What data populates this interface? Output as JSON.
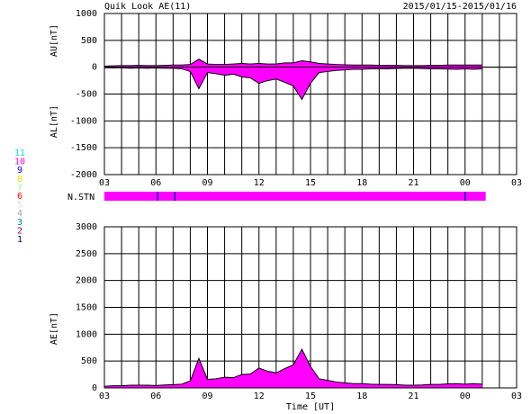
{
  "chart_data": [
    {
      "type": "area",
      "title": "Quik Look AE(11)",
      "subtitle": "2015/01/15-2015/01/16",
      "ylabels": [
        "AU[nT]",
        "AL[nT]"
      ],
      "x": [
        0,
        0.5,
        1,
        1.5,
        2,
        2.5,
        3,
        3.5,
        4,
        4.5,
        5,
        5.5,
        6,
        6.5,
        7,
        7.5,
        8,
        8.5,
        9,
        9.5,
        10,
        10.5,
        11,
        11.5,
        12,
        12.5,
        13,
        13.5,
        14,
        14.5,
        15,
        15.5,
        16,
        16.5,
        17,
        17.5,
        18,
        18.5,
        19,
        19.5,
        20,
        20.5,
        21,
        21.5,
        22
      ],
      "series": [
        {
          "color": "#ff00ff",
          "values": [
            20,
            25,
            30,
            30,
            35,
            30,
            30,
            35,
            40,
            40,
            50,
            150,
            60,
            50,
            50,
            60,
            70,
            60,
            70,
            60,
            60,
            80,
            80,
            120,
            100,
            70,
            60,
            50,
            45,
            40,
            40,
            40,
            35,
            35,
            35,
            30,
            30,
            30,
            35,
            35,
            40,
            40,
            40,
            40,
            40
          ]
        },
        {
          "color": "#ff00ff",
          "values": [
            -10,
            -15,
            -10,
            -20,
            -15,
            -20,
            -15,
            -20,
            -20,
            -30,
            -80,
            -400,
            -100,
            -120,
            -150,
            -130,
            -180,
            -200,
            -300,
            -250,
            -220,
            -280,
            -350,
            -600,
            -300,
            -100,
            -80,
            -60,
            -50,
            -40,
            -40,
            -30,
            -30,
            -30,
            -25,
            -20,
            -20,
            -25,
            -30,
            -30,
            -35,
            -40,
            -30,
            -40,
            -30
          ]
        }
      ],
      "xlim": [
        0,
        24
      ],
      "xticks": [
        {
          "value": 0,
          "label": "03"
        },
        {
          "value": 3,
          "label": "06"
        },
        {
          "value": 6,
          "label": "09"
        },
        {
          "value": 9,
          "label": "12"
        },
        {
          "value": 12,
          "label": "15"
        },
        {
          "value": 15,
          "label": "18"
        },
        {
          "value": 18,
          "label": "21"
        },
        {
          "value": 21,
          "label": "00"
        },
        {
          "value": 24,
          "label": "03"
        }
      ],
      "ylim": [
        -2000,
        1000
      ],
      "yticks": [
        -2000,
        -1500,
        -1000,
        -500,
        0,
        500,
        1000
      ],
      "grid": true
    },
    {
      "type": "area",
      "ylabels": [
        "AE[nT]"
      ],
      "xlabel": "Time [UT]",
      "x": [
        0,
        0.5,
        1,
        1.5,
        2,
        2.5,
        3,
        3.5,
        4,
        4.5,
        5,
        5.5,
        6,
        6.5,
        7,
        7.5,
        8,
        8.5,
        9,
        9.5,
        10,
        10.5,
        11,
        11.5,
        12,
        12.5,
        13,
        13.5,
        14,
        14.5,
        15,
        15.5,
        16,
        16.5,
        17,
        17.5,
        18,
        18.5,
        19,
        19.5,
        20,
        20.5,
        21,
        21.5,
        22
      ],
      "series": [
        {
          "color": "#ff00ff",
          "values": [
            30,
            40,
            40,
            50,
            50,
            50,
            45,
            55,
            60,
            70,
            130,
            550,
            160,
            170,
            200,
            190,
            250,
            260,
            370,
            310,
            280,
            360,
            430,
            720,
            400,
            170,
            140,
            110,
            95,
            80,
            80,
            70,
            65,
            65,
            60,
            50,
            50,
            55,
            65,
            65,
            75,
            80,
            70,
            80,
            70
          ]
        }
      ],
      "xlim": [
        0,
        24
      ],
      "xticks": [
        {
          "value": 0,
          "label": "03"
        },
        {
          "value": 3,
          "label": "06"
        },
        {
          "value": 6,
          "label": "09"
        },
        {
          "value": 9,
          "label": "12"
        },
        {
          "value": 12,
          "label": "15"
        },
        {
          "value": 15,
          "label": "18"
        },
        {
          "value": 18,
          "label": "21"
        },
        {
          "value": 21,
          "label": "00"
        },
        {
          "value": 24,
          "label": "03"
        }
      ],
      "ylim": [
        0,
        3000
      ],
      "yticks": [
        0,
        500,
        1000,
        1500,
        2000,
        2500,
        3000
      ],
      "grid": true
    }
  ],
  "station_bar": {
    "label": "N.STN",
    "color": "#ff00ff",
    "end": 22.2,
    "markers": [
      3.1,
      4.1,
      21
    ],
    "marker_color": "#0000cc"
  },
  "station_legend": [
    {
      "label": "11",
      "color": "#00e0e0"
    },
    {
      "label": "10",
      "color": "#ff00ff"
    },
    {
      "label": "9",
      "color": "#0000ff"
    },
    {
      "label": "8",
      "color": "#e8e800"
    },
    {
      "label": "7",
      "color": "#90ff90"
    },
    {
      "label": "6",
      "color": "#ff0000"
    },
    {
      "label": "5",
      "color": "#e0e0e0"
    },
    {
      "label": "4",
      "color": "#a0a0a0"
    },
    {
      "label": "3",
      "color": "#008080"
    },
    {
      "label": "2",
      "color": "#800080"
    },
    {
      "label": "1",
      "color": "#000080"
    }
  ]
}
